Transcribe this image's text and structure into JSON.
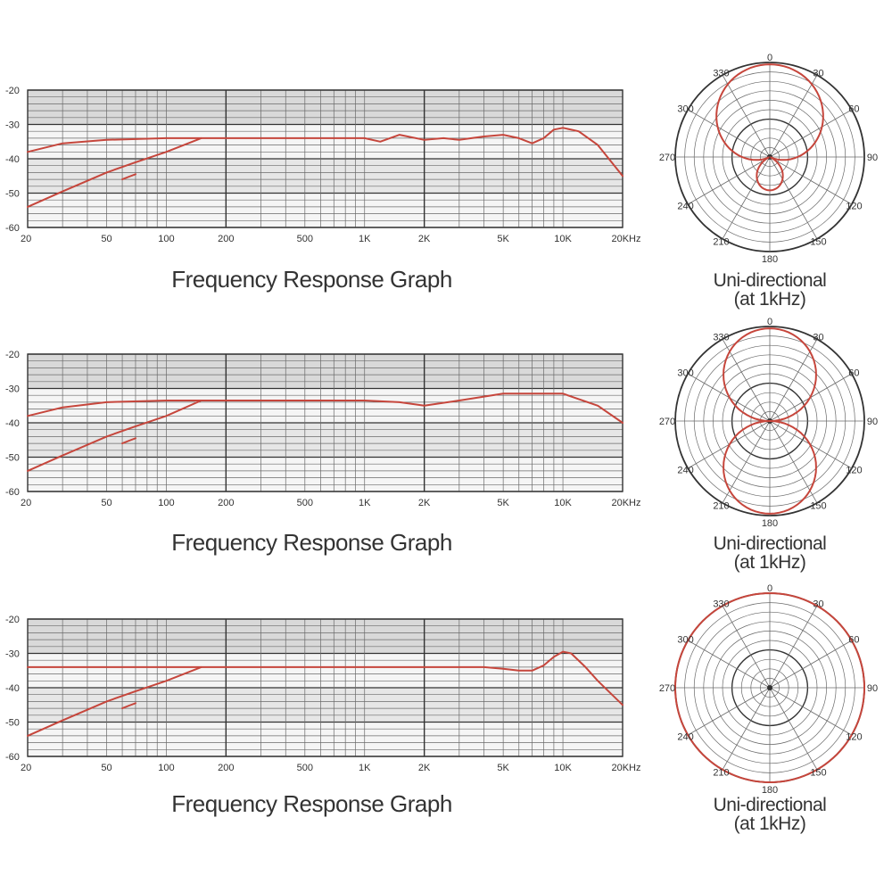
{
  "chart_data": [
    {
      "type": "line",
      "title": "Frequency Response Graph",
      "x_scale": "log",
      "xlim": [
        20,
        20000
      ],
      "ylim": [
        -60,
        -20
      ],
      "grid": true,
      "y_ticks": [
        "-20",
        "-30",
        "-40",
        "-50",
        "-60"
      ],
      "x_ticks": [
        {
          "value": 20,
          "label": "20"
        },
        {
          "value": 50,
          "label": "50"
        },
        {
          "value": 100,
          "label": "100"
        },
        {
          "value": 200,
          "label": "200"
        },
        {
          "value": 500,
          "label": "500"
        },
        {
          "value": 1000,
          "label": "1K"
        },
        {
          "value": 2000,
          "label": "2K"
        },
        {
          "value": 5000,
          "label": "5K"
        },
        {
          "value": 10000,
          "label": "10K"
        },
        {
          "value": 20000,
          "label": "20KHz"
        }
      ],
      "series": [
        {
          "x": [
            20,
            30,
            50,
            100,
            150,
            200,
            500,
            1000,
            1200,
            1500,
            2000,
            2500,
            3000,
            4000,
            5000,
            6000,
            7000,
            8000,
            9000,
            10000,
            12000,
            15000,
            20000
          ],
          "y": [
            -38,
            -35.5,
            -34.5,
            -34,
            -34,
            -34,
            -34,
            -34,
            -35,
            -33,
            -34.5,
            -34,
            -34.5,
            -33.5,
            -33,
            -34,
            -35.5,
            -34,
            -31.5,
            -31,
            -32,
            -36,
            -45
          ]
        },
        {
          "x": [
            20,
            30,
            50,
            70,
            100,
            150
          ],
          "y": [
            -54,
            -49.5,
            -44,
            -41,
            -38,
            -34
          ]
        },
        {
          "x": [
            60,
            65,
            70
          ],
          "y": [
            -46,
            -45.2,
            -44.5
          ]
        }
      ]
    },
    {
      "type": "line",
      "title": "Frequency Response Graph",
      "x_scale": "log",
      "xlim": [
        20,
        20000
      ],
      "ylim": [
        -60,
        -20
      ],
      "grid": true,
      "y_ticks": [
        "-20",
        "-30",
        "-40",
        "-50",
        "-60"
      ],
      "x_ticks": [
        {
          "value": 20,
          "label": "20"
        },
        {
          "value": 50,
          "label": "50"
        },
        {
          "value": 100,
          "label": "100"
        },
        {
          "value": 200,
          "label": "200"
        },
        {
          "value": 500,
          "label": "500"
        },
        {
          "value": 1000,
          "label": "1K"
        },
        {
          "value": 2000,
          "label": "2K"
        },
        {
          "value": 5000,
          "label": "5K"
        },
        {
          "value": 10000,
          "label": "10K"
        },
        {
          "value": 20000,
          "label": "20KHz"
        }
      ],
      "series": [
        {
          "x": [
            20,
            30,
            50,
            100,
            150,
            200,
            500,
            1000,
            1500,
            2000,
            3000,
            5000,
            7000,
            10000,
            15000,
            20000
          ],
          "y": [
            -38,
            -35.5,
            -34,
            -33.5,
            -33.5,
            -33.5,
            -33.5,
            -33.5,
            -34,
            -35,
            -33.5,
            -31.5,
            -31.5,
            -31.5,
            -35,
            -40
          ]
        },
        {
          "x": [
            20,
            30,
            50,
            70,
            100,
            150
          ],
          "y": [
            -54,
            -49.5,
            -44,
            -41,
            -38,
            -33.5
          ]
        },
        {
          "x": [
            60,
            65,
            70
          ],
          "y": [
            -46,
            -45.2,
            -44.5
          ]
        }
      ]
    },
    {
      "type": "line",
      "title": "Frequency Response Graph",
      "x_scale": "log",
      "xlim": [
        20,
        20000
      ],
      "ylim": [
        -60,
        -20
      ],
      "grid": true,
      "y_ticks": [
        "-20",
        "-30",
        "-40",
        "-50",
        "-60"
      ],
      "x_ticks": [
        {
          "value": 20,
          "label": "20"
        },
        {
          "value": 50,
          "label": "50"
        },
        {
          "value": 100,
          "label": "100"
        },
        {
          "value": 200,
          "label": "200"
        },
        {
          "value": 500,
          "label": "500"
        },
        {
          "value": 1000,
          "label": "1K"
        },
        {
          "value": 2000,
          "label": "2K"
        },
        {
          "value": 5000,
          "label": "5K"
        },
        {
          "value": 10000,
          "label": "10K"
        },
        {
          "value": 20000,
          "label": "20KHz"
        }
      ],
      "series": [
        {
          "x": [
            20,
            50,
            100,
            200,
            500,
            1000,
            2000,
            4000,
            5000,
            6000,
            7000,
            8000,
            9000,
            10000,
            11000,
            13000,
            15000,
            20000
          ],
          "y": [
            -34,
            -34,
            -34,
            -34,
            -34,
            -34,
            -34,
            -34,
            -34.5,
            -35,
            -35,
            -33.5,
            -31,
            -29.5,
            -30,
            -34,
            -38,
            -45
          ]
        },
        {
          "x": [
            20,
            30,
            50,
            70,
            100,
            150
          ],
          "y": [
            -54,
            -49.5,
            -44,
            -41,
            -38,
            -34
          ]
        },
        {
          "x": [
            60,
            65,
            70
          ],
          "y": [
            -46,
            -45.2,
            -44.5
          ]
        }
      ]
    },
    {
      "type": "polar",
      "pattern": "cardioid",
      "title": "Uni-directional",
      "subtitle": "(at 1kHz)",
      "angle_ticks": [
        "0",
        "30",
        "60",
        "90",
        "120",
        "150",
        "180",
        "210",
        "240",
        "270",
        "300",
        "330"
      ],
      "series": [
        {
          "pattern": "cardioid"
        }
      ]
    },
    {
      "type": "polar",
      "pattern": "figure-8",
      "title": "Uni-directional",
      "subtitle": "(at 1kHz)",
      "angle_ticks": [
        "0",
        "30",
        "60",
        "90",
        "120",
        "150",
        "180",
        "210",
        "240",
        "270",
        "300",
        "330"
      ],
      "series": [
        {
          "pattern": "figure-8"
        }
      ]
    },
    {
      "type": "polar",
      "pattern": "omnidirectional",
      "title": "Uni-directional",
      "subtitle": "(at 1kHz)",
      "angle_ticks": [
        "0",
        "30",
        "60",
        "90",
        "120",
        "150",
        "180",
        "210",
        "240",
        "270",
        "300",
        "330"
      ],
      "series": [
        {
          "pattern": "omni"
        }
      ]
    }
  ],
  "colors": {
    "curve": "#c6463c",
    "grid_major": "#333333",
    "grid_minor": "#6a6a6a",
    "band": "#d9d9d9",
    "plot_bg": "#f5f5f5",
    "text": "#333333"
  }
}
